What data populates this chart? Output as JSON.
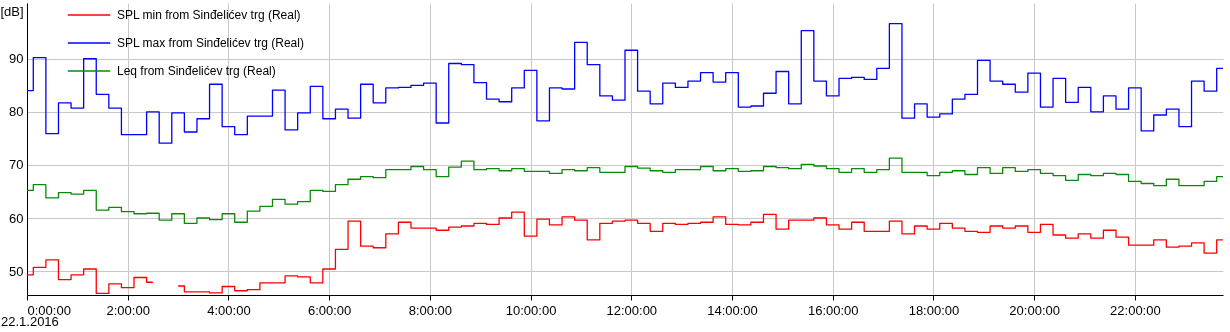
{
  "chart_data": {
    "type": "step",
    "ylabel": "[dB]",
    "annotations": [
      "22.1.2016"
    ],
    "x": [
      0,
      0.25,
      0.5,
      0.75,
      1,
      1.25,
      1.5,
      1.75,
      2,
      2.25,
      2.5,
      2.75,
      3,
      3.25,
      3.5,
      3.75,
      4,
      4.25,
      4.5,
      4.75,
      5,
      5.25,
      5.5,
      5.75,
      6,
      6.25,
      6.5,
      6.75,
      7,
      7.25,
      7.5,
      7.75,
      8,
      8.25,
      8.5,
      8.75,
      9,
      9.25,
      9.5,
      9.75,
      10,
      10.25,
      10.5,
      10.75,
      11,
      11.25,
      11.5,
      11.75,
      12,
      12.25,
      12.5,
      12.75,
      13,
      13.25,
      13.5,
      13.75,
      14,
      14.25,
      14.5,
      14.75,
      15,
      15.25,
      15.5,
      15.75,
      16,
      16.25,
      16.5,
      16.75,
      17,
      17.25,
      17.5,
      17.75,
      18,
      18.25,
      18.5,
      18.75,
      19,
      19.25,
      19.5,
      19.75,
      20,
      20.25,
      20.5,
      20.75,
      21,
      21.25,
      21.5,
      21.75,
      22,
      22.25,
      22.5,
      22.75,
      23,
      23.25,
      23.5,
      23.75
    ],
    "series": [
      {
        "name": "SPL min from Sinđelićev trg (Real)",
        "color": "#ff0000",
        "values": [
          49.3,
          50.7,
          52.1,
          48.4,
          49.3,
          50.4,
          45.8,
          47.6,
          46.9,
          48.8,
          47.9,
          null,
          47.2,
          46.1,
          46.1,
          45.9,
          47.1,
          46.3,
          46.5,
          47.8,
          47.8,
          49.1,
          48.9,
          47.8,
          50.4,
          54.1,
          59.4,
          54.7,
          54.4,
          57.0,
          59.2,
          58.1,
          58.1,
          57.7,
          58.3,
          58.5,
          59.0,
          58.8,
          60.0,
          61.1,
          56.6,
          59.8,
          58.7,
          60.2,
          59.6,
          55.9,
          59.0,
          59.4,
          59.6,
          59.0,
          57.5,
          59.0,
          58.8,
          59.0,
          59.2,
          60.2,
          58.8,
          58.7,
          59.2,
          60.7,
          57.9,
          59.6,
          59.6,
          60.0,
          58.7,
          57.9,
          59.2,
          57.5,
          57.5,
          59.4,
          57.0,
          58.5,
          57.9,
          59.0,
          58.1,
          57.5,
          57.3,
          58.5,
          58.1,
          58.5,
          57.3,
          58.8,
          56.8,
          56.2,
          57.0,
          56.2,
          57.7,
          56.4,
          54.9,
          54.9,
          55.9,
          54.5,
          54.7,
          55.3,
          53.4,
          55.9
        ]
      },
      {
        "name": "SPL max from Sinđelićev trg (Real)",
        "color": "#0000ff",
        "values": [
          84.0,
          90.2,
          75.9,
          81.7,
          80.7,
          90.0,
          83.3,
          80.7,
          75.7,
          75.7,
          80.0,
          74.1,
          79.8,
          76.2,
          78.7,
          85.2,
          77.2,
          75.7,
          79.2,
          79.2,
          84.1,
          76.6,
          79.8,
          84.8,
          78.7,
          80.5,
          78.8,
          85.2,
          81.7,
          84.5,
          84.6,
          85.0,
          85.4,
          77.9,
          89.1,
          88.9,
          85.5,
          82.4,
          81.9,
          84.5,
          87.8,
          78.3,
          84.5,
          84.3,
          93.1,
          88.9,
          83.0,
          82.2,
          91.6,
          83.9,
          81.5,
          85.4,
          84.6,
          85.8,
          87.4,
          85.6,
          87.4,
          80.9,
          81.1,
          83.5,
          87.6,
          81.5,
          95.3,
          85.8,
          83.0,
          86.3,
          86.5,
          86.1,
          88.2,
          96.6,
          78.8,
          81.5,
          79.0,
          79.6,
          82.4,
          83.3,
          89.7,
          85.8,
          85.2,
          83.7,
          87.3,
          80.9,
          86.3,
          81.8,
          84.6,
          80.0,
          83.0,
          80.5,
          84.5,
          76.4,
          79.4,
          80.5,
          77.2,
          85.8,
          83.9,
          88.2
        ]
      },
      {
        "name": "Leq from Sinđelićev trg (Real)",
        "color": "#0a8a0a",
        "values": [
          65.2,
          66.3,
          63.8,
          64.8,
          64.5,
          65.2,
          61.5,
          62.0,
          61.2,
          60.8,
          60.9,
          59.6,
          60.8,
          59.0,
          60.0,
          59.7,
          60.8,
          59.2,
          61.3,
          62.2,
          63.5,
          62.6,
          63.1,
          65.2,
          65.0,
          66.3,
          67.3,
          67.8,
          67.6,
          69.1,
          69.1,
          69.7,
          69.1,
          67.8,
          69.6,
          70.7,
          69.1,
          69.3,
          68.9,
          69.3,
          68.8,
          68.8,
          68.4,
          69.1,
          68.9,
          69.5,
          68.6,
          68.6,
          69.7,
          69.4,
          68.9,
          68.6,
          69.1,
          69.1,
          69.7,
          68.9,
          69.3,
          68.8,
          68.9,
          69.7,
          69.5,
          69.3,
          70.1,
          69.8,
          69.3,
          68.6,
          69.3,
          68.6,
          69.1,
          71.3,
          68.6,
          68.6,
          68.0,
          68.6,
          68.9,
          68.2,
          69.5,
          68.4,
          69.5,
          68.8,
          69.1,
          68.4,
          68.0,
          67.1,
          68.2,
          68.0,
          68.4,
          68.2,
          66.9,
          66.5,
          66.1,
          67.3,
          66.1,
          66.1,
          66.9,
          67.8
        ]
      }
    ],
    "xlim": [
      0,
      23.75
    ],
    "xticks": [
      {
        "value": 0,
        "label": "0:00:00"
      },
      {
        "value": 2,
        "label": "2:00:00"
      },
      {
        "value": 4,
        "label": "4:00:00"
      },
      {
        "value": 6,
        "label": "6:00:00"
      },
      {
        "value": 8,
        "label": "8:00:00"
      },
      {
        "value": 10,
        "label": "10:00:00"
      },
      {
        "value": 12,
        "label": "12:00:00"
      },
      {
        "value": 14,
        "label": "14:00:00"
      },
      {
        "value": 16,
        "label": "16:00:00"
      },
      {
        "value": 18,
        "label": "18:00:00"
      },
      {
        "value": 20,
        "label": "20:00:00"
      },
      {
        "value": 22,
        "label": "22:00:00"
      }
    ],
    "ylim": [
      45.5,
      100.5
    ],
    "yticks": [
      50,
      60,
      70,
      80,
      90
    ],
    "grid": true,
    "legend": "top left"
  }
}
